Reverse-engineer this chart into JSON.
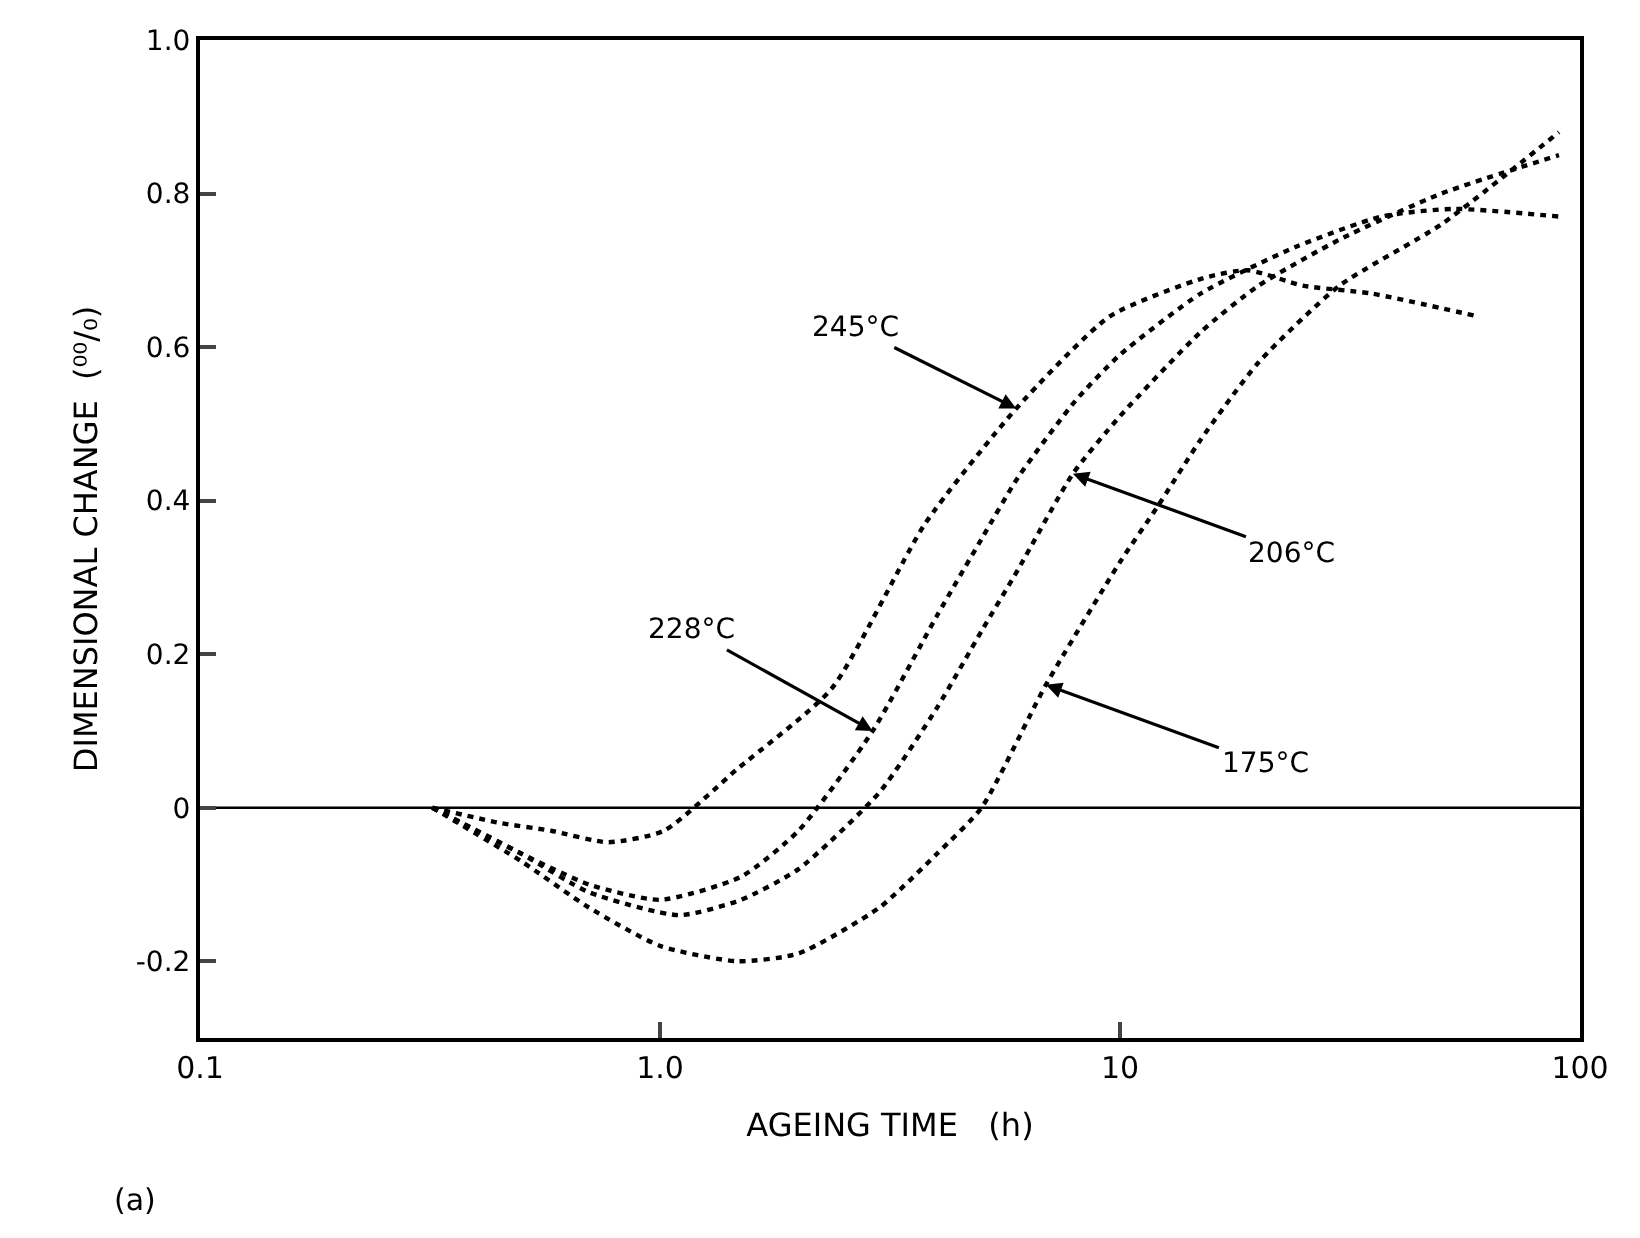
{
  "chart_data": {
    "type": "line",
    "xlabel": "AGEING TIME   (h)",
    "ylabel": "DIMENSIONAL CHANGE  (⁰⁰/₀)",
    "log": "x",
    "xlim": [
      0.1,
      100
    ],
    "xticks": [
      0.1,
      {
        "value": 1,
        "label": "1.0"
      },
      10,
      100
    ],
    "ylim": [
      -0.3,
      1.0
    ],
    "yticks": [
      -0.2,
      0,
      0.2,
      0.4,
      0.6,
      0.8,
      {
        "value": 1.0,
        "label": "1.0"
      }
    ],
    "grid": false,
    "line_style": "dotted",
    "marker": "none",
    "series": [
      {
        "color": "#000000",
        "x": [
          0.32,
          0.45,
          0.58,
          0.77,
          1.02,
          1.47,
          2.36,
          3.77,
          5.95,
          9.5,
          15.2,
          19,
          25,
          35,
          60
        ],
        "values": [
          0,
          -0.02,
          -0.03,
          -0.045,
          -0.03,
          0.05,
          0.155,
          0.37,
          0.52,
          0.64,
          0.69,
          0.7,
          0.68,
          0.67,
          0.64
        ]
      },
      {
        "color": "#000000",
        "x": [
          0.32,
          0.5,
          0.7,
          1.0,
          1.5,
          2,
          2.9,
          4,
          5,
          6,
          8,
          10,
          15,
          24,
          37,
          53,
          90
        ],
        "values": [
          0,
          -0.06,
          -0.1,
          -0.12,
          -0.09,
          -0.03,
          0.1,
          0.25,
          0.35,
          0.43,
          0.53,
          0.59,
          0.67,
          0.73,
          0.77,
          0.78,
          0.77
        ]
      },
      {
        "color": "#000000",
        "x": [
          0.32,
          0.5,
          0.7,
          1.1,
          1.5,
          2,
          3,
          4,
          5,
          6,
          7.9,
          10,
          15,
          20,
          30,
          50,
          90
        ],
        "values": [
          0,
          -0.06,
          -0.11,
          -0.14,
          -0.12,
          -0.08,
          0.02,
          0.13,
          0.23,
          0.31,
          0.435,
          0.51,
          0.62,
          0.68,
          0.74,
          0.8,
          0.85
        ]
      },
      {
        "color": "#000000",
        "x": [
          0.32,
          0.5,
          0.7,
          1.0,
          1.47,
          2,
          3,
          4,
          5,
          6.9,
          10,
          12,
          15,
          20,
          30,
          50,
          90
        ],
        "values": [
          0,
          -0.07,
          -0.13,
          -0.18,
          -0.2,
          -0.19,
          -0.13,
          -0.06,
          0.0,
          0.16,
          0.32,
          0.39,
          0.48,
          0.58,
          0.68,
          0.76,
          0.88
        ]
      }
    ],
    "ref_lines": [
      {
        "axis": "y",
        "value": 0,
        "color": "#000000",
        "line_style": "solid"
      }
    ],
    "annotations": [
      {
        "text": "245°C",
        "x": 5.95,
        "y": 0.52
      },
      {
        "text": "206°C",
        "x": 7.9,
        "y": 0.435
      },
      {
        "text": "228°C",
        "x": 2.9,
        "y": 0.1
      },
      {
        "text": "175°C",
        "x": 6.9,
        "y": 0.16
      },
      "(a)"
    ]
  }
}
